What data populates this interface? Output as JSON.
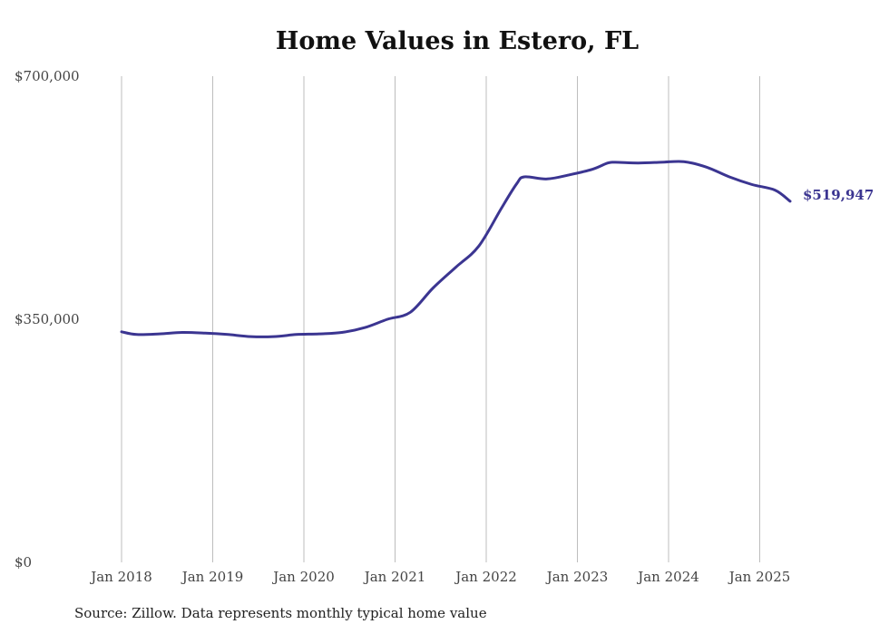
{
  "chart_data": {
    "type": "line",
    "title": "Home Values in Estero, FL",
    "xlabel": "",
    "ylabel": "",
    "ylim": [
      0,
      700000
    ],
    "yticks": [
      {
        "value": 0,
        "label": "$0"
      },
      {
        "value": 350000,
        "label": "$350,000"
      },
      {
        "value": 700000,
        "label": "$700,000"
      }
    ],
    "xticks": [
      {
        "value": "2018-01",
        "label": "Jan 2018"
      },
      {
        "value": "2019-01",
        "label": "Jan 2019"
      },
      {
        "value": "2020-01",
        "label": "Jan 2020"
      },
      {
        "value": "2021-01",
        "label": "Jan 2021"
      },
      {
        "value": "2022-01",
        "label": "Jan 2022"
      },
      {
        "value": "2023-01",
        "label": "Jan 2023"
      },
      {
        "value": "2024-01",
        "label": "Jan 2024"
      },
      {
        "value": "2025-01",
        "label": "Jan 2025"
      }
    ],
    "grid": "vertical",
    "color": "#3b3591",
    "end_label": "$519,947",
    "series": [
      {
        "x": [
          "2018-01",
          "2018-03",
          "2018-06",
          "2018-09",
          "2018-12",
          "2019-03",
          "2019-06",
          "2019-09",
          "2019-12",
          "2020-03",
          "2020-06",
          "2020-09",
          "2020-12",
          "2021-03",
          "2021-06",
          "2021-09",
          "2021-12",
          "2022-03",
          "2022-05",
          "2022-06",
          "2022-09",
          "2022-12",
          "2023-03",
          "2023-05",
          "2023-06",
          "2023-09",
          "2023-12",
          "2024-03",
          "2024-06",
          "2024-09",
          "2024-12",
          "2025-03",
          "2025-05"
        ],
        "y": [
          332000,
          328000,
          329000,
          331000,
          330000,
          328000,
          325000,
          325000,
          328000,
          329000,
          331000,
          338000,
          350000,
          360000,
          395000,
          425000,
          455000,
          510000,
          545000,
          555000,
          552000,
          558000,
          566000,
          575000,
          576000,
          575000,
          576000,
          577000,
          569000,
          555000,
          544000,
          536000,
          519947
        ]
      }
    ]
  },
  "source": "Source: Zillow. Data represents monthly typical home value"
}
